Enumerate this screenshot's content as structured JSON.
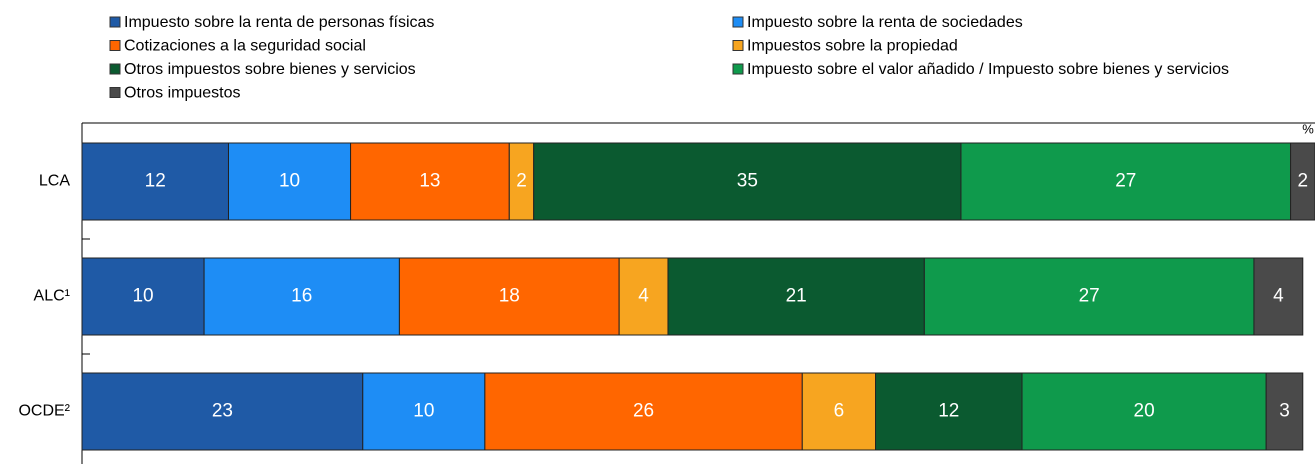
{
  "chart_data": {
    "type": "stacked-bar",
    "unit": "%",
    "categories": [
      "LCA",
      "ALC¹",
      "OCDE²"
    ],
    "series": [
      {
        "name": "Impuesto sobre la renta de personas físicas",
        "color": "#1f5aa6",
        "values": [
          12,
          10,
          23
        ]
      },
      {
        "name": "Impuesto sobre la renta de sociedades",
        "color": "#1e8df5",
        "values": [
          10,
          16,
          10
        ]
      },
      {
        "name": "Cotizaciones a la seguridad social",
        "color": "#ff6600",
        "values": [
          13,
          18,
          26
        ]
      },
      {
        "name": "Impuestos sobre la propiedad",
        "color": "#f7a520",
        "values": [
          2,
          4,
          6
        ]
      },
      {
        "name": "Otros impuestos sobre bienes y servicios",
        "color": "#0b5a30",
        "values": [
          35,
          21,
          12
        ]
      },
      {
        "name": "Impuesto sobre el valor añadido / Impuesto sobre bienes y servicios",
        "color": "#0f9a4c",
        "values": [
          27,
          27,
          20
        ]
      },
      {
        "name": "Otros impuestos",
        "color": "#4a4a4a",
        "values": [
          2,
          4,
          3
        ]
      }
    ],
    "xlim": [
      0,
      101
    ]
  }
}
